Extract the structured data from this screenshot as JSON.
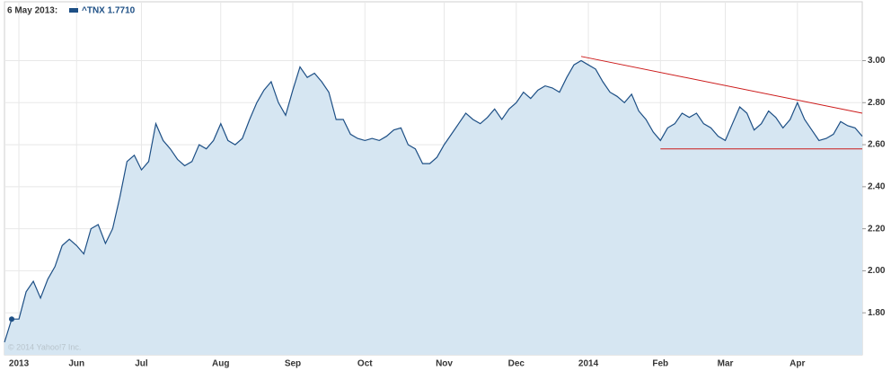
{
  "chart_data": {
    "type": "area",
    "header_date": "6 May 2013:",
    "watermark": "© 2014 Yahoo!7 Inc.",
    "categories": [
      null,
      null,
      "2013",
      null,
      null,
      null,
      null,
      null,
      null,
      null,
      "Jun",
      null,
      null,
      null,
      null,
      null,
      null,
      null,
      null,
      "Jul",
      null,
      null,
      null,
      null,
      null,
      null,
      null,
      null,
      null,
      null,
      "Aug",
      null,
      null,
      null,
      null,
      null,
      null,
      null,
      null,
      null,
      "Sep",
      null,
      null,
      null,
      null,
      null,
      null,
      null,
      null,
      null,
      "Oct",
      null,
      null,
      null,
      null,
      null,
      null,
      null,
      null,
      null,
      null,
      "Nov",
      null,
      null,
      null,
      null,
      null,
      null,
      null,
      null,
      null,
      "Dec",
      null,
      null,
      null,
      null,
      null,
      null,
      null,
      null,
      null,
      "2014",
      null,
      null,
      null,
      null,
      null,
      null,
      null,
      null,
      null,
      "Feb",
      null,
      null,
      null,
      null,
      null,
      null,
      null,
      null,
      "Mar",
      null,
      null,
      null,
      null,
      null,
      null,
      null,
      null,
      null,
      "Apr",
      null,
      null,
      null,
      null,
      null,
      null,
      null,
      null,
      null
    ],
    "series": [
      {
        "name": "^TNX 1.7710",
        "color": "#1d4f85",
        "fill": "#d6e6f2",
        "values": [
          1.66,
          1.77,
          1.77,
          1.9,
          1.95,
          1.87,
          1.96,
          2.02,
          2.12,
          2.15,
          2.12,
          2.08,
          2.2,
          2.22,
          2.13,
          2.2,
          2.35,
          2.52,
          2.55,
          2.48,
          2.52,
          2.7,
          2.62,
          2.58,
          2.53,
          2.5,
          2.52,
          2.6,
          2.58,
          2.62,
          2.7,
          2.62,
          2.6,
          2.63,
          2.72,
          2.8,
          2.86,
          2.9,
          2.8,
          2.74,
          2.86,
          2.97,
          2.92,
          2.94,
          2.9,
          2.85,
          2.72,
          2.72,
          2.65,
          2.63,
          2.62,
          2.63,
          2.62,
          2.64,
          2.67,
          2.68,
          2.6,
          2.58,
          2.51,
          2.51,
          2.54,
          2.6,
          2.65,
          2.7,
          2.75,
          2.72,
          2.7,
          2.73,
          2.77,
          2.72,
          2.77,
          2.8,
          2.85,
          2.82,
          2.86,
          2.88,
          2.87,
          2.85,
          2.92,
          2.98,
          3.0,
          2.98,
          2.96,
          2.9,
          2.85,
          2.83,
          2.8,
          2.84,
          2.76,
          2.72,
          2.66,
          2.62,
          2.68,
          2.7,
          2.75,
          2.73,
          2.75,
          2.7,
          2.68,
          2.64,
          2.62,
          2.7,
          2.78,
          2.75,
          2.67,
          2.7,
          2.76,
          2.73,
          2.68,
          2.72,
          2.8,
          2.72,
          2.67,
          2.62,
          2.63,
          2.65,
          2.71,
          2.69,
          2.68,
          2.64
        ]
      }
    ],
    "marker_index": 1,
    "trend_lines": [
      {
        "color": "#cc1a1a",
        "x": [
          80,
          119
        ],
        "y": [
          3.02,
          2.75
        ]
      },
      {
        "color": "#cc1a1a",
        "x": [
          91,
          119
        ],
        "y": [
          2.58,
          2.58
        ]
      }
    ],
    "ylim": [
      1.6,
      3.28
    ],
    "yticks": [
      {
        "value": 1.8,
        "label": "1.80"
      },
      {
        "value": 2.0,
        "label": "2.00"
      },
      {
        "value": 2.2,
        "label": "2.20"
      },
      {
        "value": 2.4,
        "label": "2.40"
      },
      {
        "value": 2.6,
        "label": "2.60"
      },
      {
        "value": 2.8,
        "label": "2.80"
      },
      {
        "value": 3.0,
        "label": "3.00"
      }
    ],
    "grid": true
  }
}
